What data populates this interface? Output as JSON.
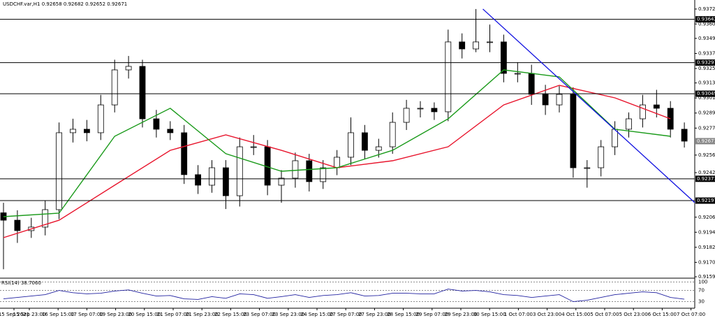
{
  "chart_data": [
    {
      "type": "candlestick",
      "title": "USDCHF.var,H1",
      "header_values": [
        0.92658,
        0.92682,
        0.92652,
        0.92671
      ],
      "open": [
        0.921,
        0.92041,
        0.91958,
        0.91986,
        0.92125,
        0.92738,
        0.92766,
        0.92738,
        0.9296,
        0.93239,
        0.93267,
        0.92849,
        0.92766,
        0.92738,
        0.92404,
        0.9232,
        0.92459,
        0.92236,
        0.92626,
        0.92626,
        0.9232,
        0.92376,
        0.92515,
        0.92348,
        0.92459,
        0.92543,
        0.92738,
        0.92598,
        0.92626,
        0.92821,
        0.92933,
        0.92933,
        0.92905,
        0.93462,
        0.93406,
        0.93462,
        0.93462,
        0.93211,
        0.93211,
        0.93044,
        0.9296,
        0.93044,
        0.92459,
        0.92459,
        0.92626,
        0.92766,
        0.92849,
        0.9296,
        0.92933,
        0.92766
      ],
      "high": [
        0.9218,
        0.9212,
        0.9206,
        0.922,
        0.9282,
        0.9285,
        0.9284,
        0.9304,
        0.9332,
        0.9335,
        0.9332,
        0.9292,
        0.9283,
        0.928,
        0.9248,
        0.9252,
        0.9252,
        0.927,
        0.9272,
        0.9268,
        0.9244,
        0.9258,
        0.9257,
        0.9252,
        0.926,
        0.9286,
        0.928,
        0.9269,
        0.929,
        0.93,
        0.9299,
        0.9298,
        0.9356,
        0.9353,
        0.93724,
        0.936,
        0.9352,
        0.933,
        0.9328,
        0.9312,
        0.9311,
        0.931,
        0.9252,
        0.9268,
        0.9283,
        0.929,
        0.9304,
        0.9308,
        0.9299,
        0.9282
      ],
      "low": [
        0.9165,
        0.9186,
        0.919,
        0.9192,
        0.9205,
        0.9266,
        0.9267,
        0.9268,
        0.929,
        0.9317,
        0.9278,
        0.927,
        0.9268,
        0.9233,
        0.9225,
        0.9226,
        0.9213,
        0.9215,
        0.9256,
        0.9224,
        0.9218,
        0.923,
        0.9227,
        0.9229,
        0.924,
        0.9248,
        0.9253,
        0.9254,
        0.9257,
        0.9276,
        0.9286,
        0.9284,
        0.9283,
        0.9333,
        0.9338,
        0.9338,
        0.9314,
        0.9314,
        0.9296,
        0.9288,
        0.929,
        0.9238,
        0.923,
        0.9239,
        0.9256,
        0.927,
        0.9278,
        0.9286,
        0.927,
        0.9262
      ],
      "close": [
        0.92041,
        0.91958,
        0.91986,
        0.92125,
        0.92738,
        0.92766,
        0.92738,
        0.9296,
        0.93239,
        0.93267,
        0.92849,
        0.92766,
        0.92738,
        0.92404,
        0.9232,
        0.92459,
        0.92236,
        0.92626,
        0.92626,
        0.9232,
        0.92376,
        0.92515,
        0.92348,
        0.92459,
        0.92543,
        0.92738,
        0.92598,
        0.92626,
        0.92821,
        0.92933,
        0.92933,
        0.92905,
        0.93462,
        0.93406,
        0.93462,
        0.93462,
        0.93211,
        0.93211,
        0.93044,
        0.9296,
        0.93044,
        0.92459,
        0.92459,
        0.92626,
        0.92766,
        0.92849,
        0.9296,
        0.92933,
        0.92766,
        0.92671
      ],
      "ma_index": [
        0,
        4,
        8,
        12,
        16,
        20,
        24,
        28,
        32,
        36,
        40,
        44,
        48
      ],
      "series": [
        {
          "color": "#e8142c",
          "values": [
            0.91902,
            0.92041,
            0.9232,
            0.92598,
            0.92721,
            0.92598,
            0.92459,
            0.92515,
            0.92626,
            0.9296,
            0.93116,
            0.93016,
            0.92849
          ]
        },
        {
          "color": "#1a9a1a",
          "values": [
            0.92069,
            0.92097,
            0.9271,
            0.92933,
            0.92571,
            0.92431,
            0.92459,
            0.92598,
            0.92849,
            0.93239,
            0.93183,
            0.92766,
            0.9271
          ]
        }
      ],
      "trendline": {
        "color": "#1010e0",
        "x": [
          34.5,
          51.4
        ],
        "y": [
          0.93724,
          0.92014
        ]
      },
      "levels": [
        0.93642,
        0.93297,
        0.93049,
        0.92371,
        0.92197
      ],
      "last_price": 0.92671,
      "ylim": [
        0.91579,
        0.93796
      ],
      "yticks": [
        0.93724,
        0.93605,
        {
          "value": 0.9349,
          "label": "0.93490"
        },
        {
          "value": 0.9337,
          "label": "0.93370"
        },
        {
          "value": 0.9325,
          "label": "0.93250"
        },
        0.93135,
        0.93015,
        0.92895,
        0.92775,
        {
          "value": 0.9256,
          "label": "0.92560"
        },
        {
          "value": 0.9242,
          "label": "0.92420"
        },
        0.92065,
        0.91945,
        0.91825,
        0.91705,
        {
          "value": 0.9159,
          "label": "0.91590"
        }
      ],
      "x_labels": [
        "15 Sep 2021",
        "15 Sep 23:00",
        "16 Sep 15:00",
        "17 Sep 07:00",
        "19 Sep 23:00",
        "20 Sep 15:00",
        "21 Sep 07:00",
        "21 Sep 23:00",
        "22 Sep 15:00",
        "23 Sep 07:00",
        "23 Sep 23:00",
        "24 Sep 15:00",
        "27 Sep 07:00",
        "27 Sep 23:00",
        "28 Sep 15:00",
        "29 Sep 07:00",
        "29 Sep 23:00",
        "30 Sep 15:00",
        "1 Oct 07:00",
        "3 Oct 23:00",
        "4 Oct 15:00",
        "5 Oct 07:00",
        "5 Oct 23:00",
        "6 Oct 15:00",
        "7 Oct 07:00"
      ]
    },
    {
      "type": "line",
      "title": "RSI(14) 38.7060",
      "color": "#2020a0",
      "values": [
        40,
        45,
        50,
        55,
        70,
        62,
        58,
        60,
        68,
        72,
        60,
        50,
        52,
        40,
        38,
        48,
        42,
        58,
        55,
        42,
        48,
        55,
        45,
        52,
        55,
        62,
        50,
        52,
        60,
        60,
        58,
        58,
        75,
        68,
        70,
        65,
        55,
        52,
        45,
        50,
        55,
        30,
        35,
        45,
        55,
        60,
        65,
        62,
        45,
        38.706
      ],
      "ylim": [
        9,
        109
      ],
      "yticks": [
        100,
        70,
        30
      ]
    }
  ]
}
